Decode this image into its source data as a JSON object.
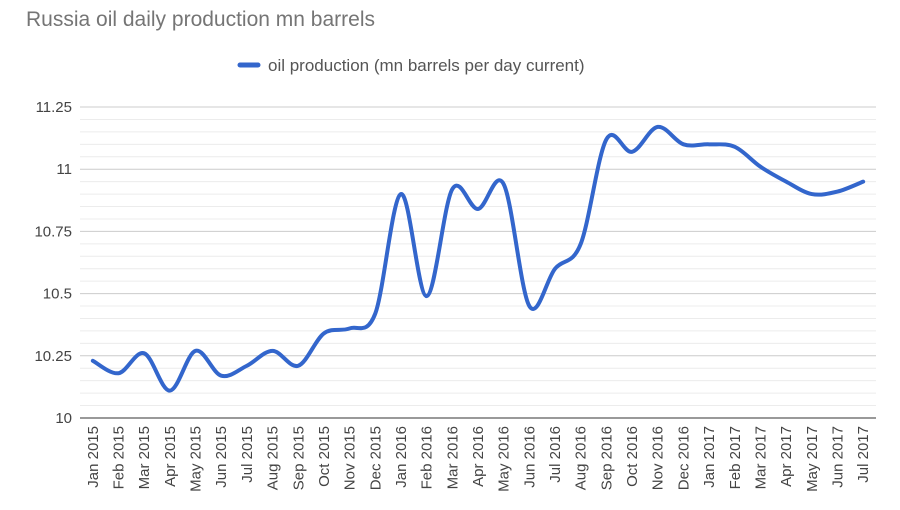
{
  "chart_data": {
    "type": "line",
    "title": "Russia oil daily production mn barrels",
    "xlabel": "",
    "ylabel": "",
    "categories": [
      "Jan 2015",
      "Feb 2015",
      "Mar 2015",
      "Apr 2015",
      "May 2015",
      "Jun 2015",
      "Jul 2015",
      "Aug 2015",
      "Sep 2015",
      "Oct 2015",
      "Nov 2015",
      "Dec 2015",
      "Jan 2016",
      "Feb 2016",
      "Mar 2016",
      "Apr 2016",
      "May 2016",
      "Jun 2016",
      "Jul 2016",
      "Aug 2016",
      "Sep 2016",
      "Oct 2016",
      "Nov 2016",
      "Dec 2016",
      "Jan 2017",
      "Feb 2017",
      "Mar 2017",
      "Apr 2017",
      "May 2017",
      "Jun 2017",
      "Jul 2017"
    ],
    "series": [
      {
        "name": "oil production (mn barrels per day current)",
        "color": "#3366cc",
        "values": [
          10.23,
          10.18,
          10.26,
          10.11,
          10.27,
          10.17,
          10.21,
          10.27,
          10.21,
          10.34,
          10.36,
          10.42,
          10.9,
          10.49,
          10.92,
          10.84,
          10.94,
          10.45,
          10.6,
          10.7,
          11.12,
          11.07,
          11.17,
          11.1,
          11.1,
          11.09,
          11.01,
          10.95,
          10.9,
          10.91,
          10.95
        ]
      }
    ],
    "ylim": [
      10,
      11.25
    ],
    "yticks": [
      10,
      10.25,
      10.5,
      10.75,
      11,
      11.25
    ],
    "ytick_labels": [
      "10",
      "10.25",
      "10.5",
      "10.75",
      "11",
      "11.25"
    ],
    "grid": true,
    "legend_position": "top-center"
  }
}
